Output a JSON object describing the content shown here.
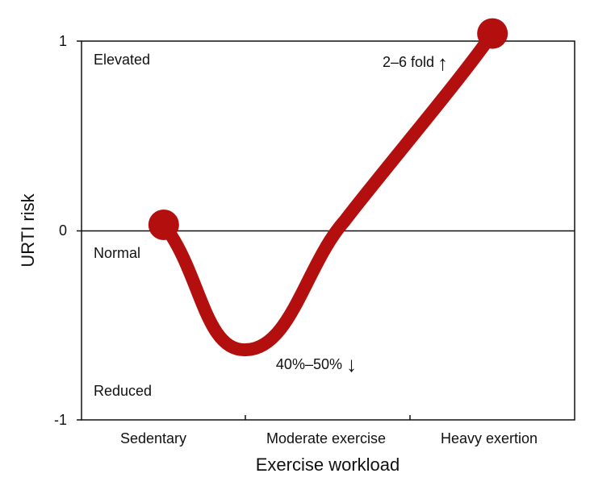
{
  "chart_data": {
    "type": "line",
    "xlabel": "Exercise workload",
    "ylabel": "URTI risk",
    "categories": [
      "Sedentary",
      "Moderate exercise",
      "Heavy exertion"
    ],
    "ylim": [
      -1,
      1
    ],
    "yticks": [
      "1",
      "0",
      "-1"
    ],
    "region_labels": {
      "top": "Elevated",
      "middle": "Normal",
      "bottom": "Reduced"
    },
    "series": [
      {
        "color": "#b40f0f",
        "points": [
          {
            "x": 0.0,
            "y": 0.03
          },
          {
            "x": 0.5,
            "y": -0.63
          },
          {
            "x": 1.1,
            "y": 0.05
          },
          {
            "x": 2.0,
            "y": 1.04
          }
        ]
      }
    ],
    "annotations": [
      {
        "text": "2–6 fold",
        "arrow": "↑"
      },
      {
        "text": "40%–50%",
        "arrow": "↓"
      }
    ],
    "grid": false,
    "legend": "none",
    "colors": {
      "curve": "#b40f0f",
      "axis": "#111111"
    }
  }
}
